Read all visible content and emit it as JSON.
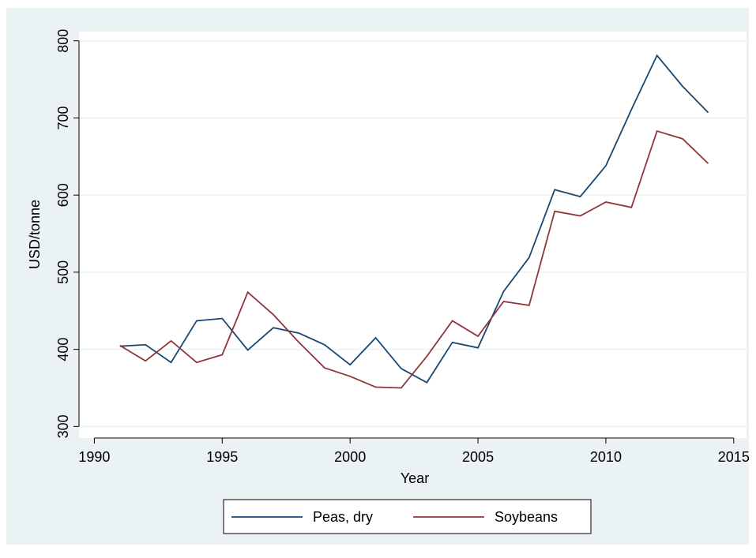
{
  "chart_data": {
    "type": "line",
    "x_label": "Year",
    "y_label": "USD/tonne",
    "x": [
      1991,
      1992,
      1993,
      1994,
      1995,
      1996,
      1997,
      1998,
      1999,
      2000,
      2001,
      2002,
      2003,
      2004,
      2005,
      2006,
      2007,
      2008,
      2009,
      2010,
      2011,
      2012,
      2013,
      2014
    ],
    "series": [
      {
        "name": "Peas, dry",
        "color": "#1a476f",
        "values": [
          404,
          406,
          383,
          437,
          440,
          399,
          428,
          421,
          406,
          380,
          415,
          375,
          357,
          409,
          402,
          475,
          519,
          607,
          598,
          638,
          711,
          781,
          741,
          707
        ]
      },
      {
        "name": "Soybeans",
        "color": "#90353b",
        "values": [
          405,
          385,
          411,
          383,
          393,
          474,
          445,
          409,
          376,
          365,
          351,
          350,
          391,
          437,
          417,
          462,
          457,
          579,
          573,
          591,
          584,
          683,
          673,
          641
        ]
      }
    ],
    "xlim": [
      1989.4,
      2015.5
    ],
    "xticks": [
      1990,
      1995,
      2000,
      2005,
      2010,
      2015
    ],
    "ylim": [
      285,
      812
    ],
    "yticks": [
      300,
      400,
      500,
      600,
      700,
      800
    ],
    "grid": true,
    "legend": "bottom"
  }
}
